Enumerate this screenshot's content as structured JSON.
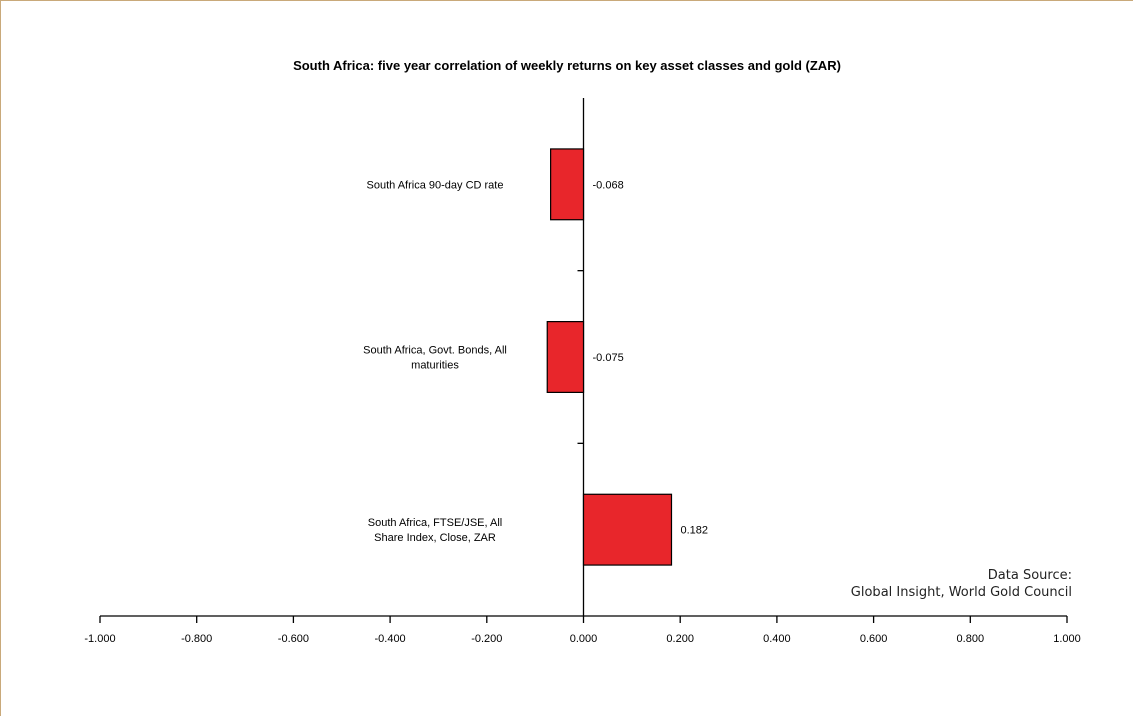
{
  "chart_data": {
    "type": "bar",
    "orientation": "horizontal",
    "title": "South Africa:  five year correlation of weekly returns on key asset classes and gold (ZAR)",
    "categories": [
      "South Africa 90-day CD rate",
      "South Africa, Govt. Bonds, All maturities",
      "South Africa, FTSE/JSE, All Share Index, Close, ZAR"
    ],
    "category_lines": [
      [
        "South Africa 90-day CD rate"
      ],
      [
        "South Africa, Govt. Bonds, All",
        "maturities"
      ],
      [
        "South Africa, FTSE/JSE, All",
        "Share Index, Close, ZAR"
      ]
    ],
    "values": [
      -0.068,
      -0.075,
      0.182
    ],
    "value_labels": [
      "-0.068",
      "-0.075",
      "0.182"
    ],
    "xlim": [
      -1.0,
      1.0
    ],
    "x_ticks": [
      -1.0,
      -0.8,
      -0.6,
      -0.4,
      -0.2,
      0.0,
      0.2,
      0.4,
      0.6,
      0.8,
      1.0
    ],
    "x_tick_labels": [
      "-1.000",
      "-0.800",
      "-0.600",
      "-0.400",
      "-0.200",
      "0.000",
      "0.200",
      "0.400",
      "0.600",
      "0.800",
      "1.000"
    ],
    "bar_color": "#e8262b",
    "grid": false,
    "legend": "none"
  },
  "source": {
    "line1": "Data Source:",
    "line2": "Global Insight, World Gold Council"
  }
}
